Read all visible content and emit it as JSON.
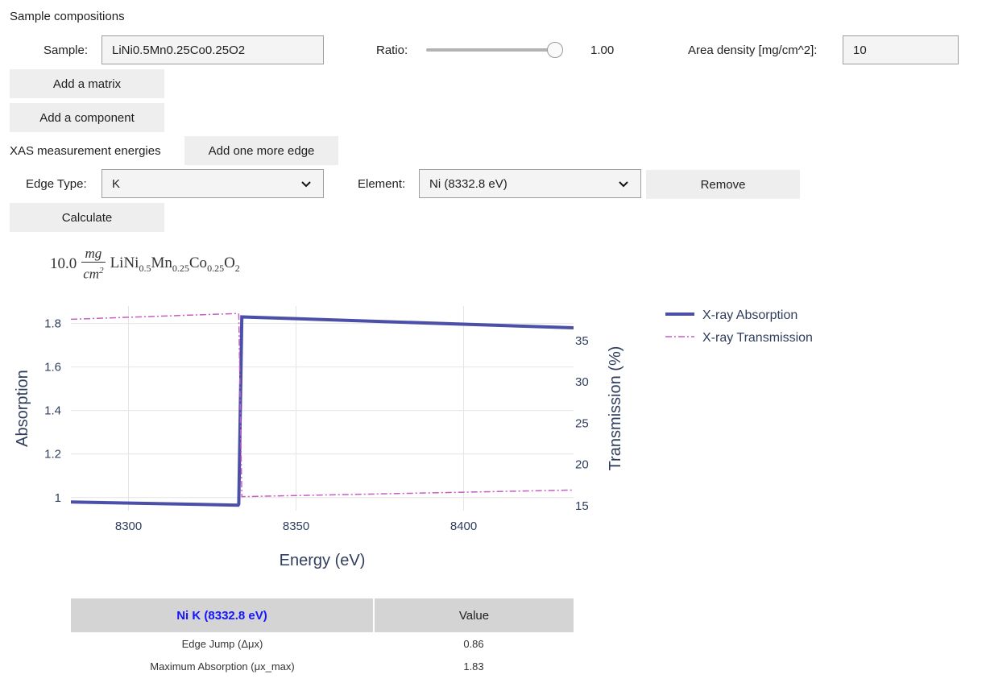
{
  "section_title": "Sample compositions",
  "sample": {
    "label": "Sample:",
    "value": "LiNi0.5Mn0.25Co0.25O2",
    "ratio_label": "Ratio:",
    "ratio_value": "1.00",
    "ratio_fraction": 1.0,
    "area_density_label": "Area density [mg/cm^2]:",
    "area_density_value": "10"
  },
  "buttons": {
    "add_matrix": "Add a matrix",
    "add_component": "Add a component",
    "add_edge": "Add one more edge",
    "remove": "Remove",
    "calculate": "Calculate"
  },
  "xas": {
    "label": "XAS measurement energies",
    "edge_type_label": "Edge Type:",
    "edge_type_value": "K",
    "element_label": "Element:",
    "element_value": "Ni (8332.8 eV)"
  },
  "formula": {
    "prefix": "10.0",
    "numerator": "mg",
    "denominator": "cm",
    "denominator_exp": "2",
    "parts": [
      {
        "el": "LiNi",
        "sub": "0.5"
      },
      {
        "el": "Mn",
        "sub": "0.25"
      },
      {
        "el": "Co",
        "sub": "0.25"
      },
      {
        "el": "O",
        "sub": "2"
      }
    ]
  },
  "chart_data": {
    "type": "line",
    "xlabel": "Energy (eV)",
    "ylabel": "Absorption",
    "y2label": "Transmission (%)",
    "xlim": [
      8282.8,
      8432.8
    ],
    "ylim": [
      0.94,
      1.88
    ],
    "y2lim": [
      14.4,
      39.2
    ],
    "xticks": [
      8300,
      8350,
      8400
    ],
    "yticks": [
      1,
      1.2,
      1.4,
      1.6,
      1.8
    ],
    "y2ticks": [
      15,
      20,
      25,
      30,
      35
    ],
    "grid": true,
    "legend_position": "top-right-outside",
    "series": [
      {
        "name": "X-ray Absorption",
        "axis": "y",
        "color": "#4b4fa8",
        "style": "solid",
        "x": [
          8282.8,
          8332.7,
          8332.9,
          8333.8,
          8432.8
        ],
        "y": [
          0.98,
          0.965,
          0.97,
          1.83,
          1.78
        ]
      },
      {
        "name": "X-ray Transmission",
        "axis": "y2",
        "color": "#c45ec4",
        "style": "dashdot",
        "x": [
          8282.8,
          8332.7,
          8332.9,
          8333.8,
          8432.8
        ],
        "y": [
          37.6,
          38.3,
          38.2,
          16.1,
          16.9
        ]
      }
    ]
  },
  "table": {
    "header_edge": "Ni K (8332.8 eV)",
    "header_value": "Value",
    "rows": [
      {
        "name": "Edge Jump (Δμx)",
        "value": "0.86"
      },
      {
        "name": "Maximum Absorption (μx_max)",
        "value": "1.83"
      }
    ]
  }
}
